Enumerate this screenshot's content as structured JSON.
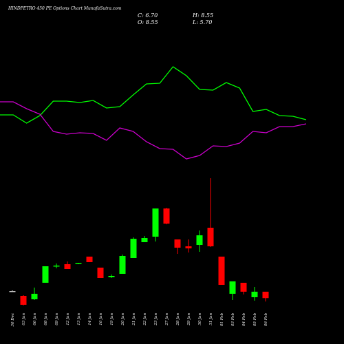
{
  "chart_data": {
    "type": "candlestick",
    "title": "HINDPETRO 450 PE Options Chart MunafaSutra.com",
    "summary": [
      "C: 6.70",
      "H: 8.55",
      "O: 8.55",
      "L: 5.70"
    ],
    "categories": [
      "30 Dec",
      "03 Jan",
      "06 Jan",
      "08 Jan",
      "09 Jan",
      "12 Jan",
      "13 Jan",
      "14 Jan",
      "16 Jan",
      "19 Jan",
      "20 Jan",
      "21 Jan",
      "22 Jan",
      "23 Jan",
      "27 Jan",
      "28 Jan",
      "29 Jan",
      "30 Jan",
      "31 Jan",
      "01 Feb",
      "03 Feb",
      "04 Feb",
      "05 Feb",
      "06 Feb"
    ],
    "open": [
      8.75,
      7.35,
      6.35,
      11.15,
      15.95,
      16.55,
      16.75,
      18.75,
      15.55,
      12.75,
      13.75,
      18.35,
      22.95,
      24.55,
      32.75,
      23.75,
      21.75,
      22.15,
      27.15,
      18.75,
      7.95,
      11.15,
      6.95,
      8.55
    ],
    "high": [
      8.95,
      7.55,
      9.75,
      15.95,
      16.75,
      17.35,
      16.95,
      18.75,
      15.55,
      13.55,
      19.35,
      24.35,
      24.75,
      32.75,
      32.95,
      23.75,
      23.75,
      26.35,
      41.55,
      18.75,
      11.55,
      11.15,
      9.95,
      8.55
    ],
    "low": [
      8.55,
      4.55,
      6.15,
      11.15,
      15.35,
      15.15,
      16.55,
      17.15,
      12.55,
      12.55,
      13.75,
      18.35,
      22.95,
      23.15,
      28.15,
      19.55,
      19.95,
      20.15,
      21.55,
      10.55,
      6.15,
      7.75,
      5.95,
      5.7
    ],
    "close": [
      8.75,
      4.75,
      7.95,
      15.95,
      16.15,
      15.15,
      16.95,
      17.15,
      12.55,
      13.15,
      18.95,
      23.95,
      24.15,
      32.75,
      28.35,
      21.35,
      21.15,
      24.95,
      21.75,
      10.55,
      11.55,
      8.55,
      8.55,
      6.7
    ],
    "up_color": "#00ff00",
    "down_color": "#ff0000",
    "flat_color": "#cccccc",
    "series": [
      {
        "color": "#00ff00",
        "values": [
          59.95,
          59.95,
          57.55,
          59.75,
          63.95,
          63.95,
          63.55,
          64.15,
          61.95,
          62.35,
          65.75,
          68.95,
          69.15,
          73.95,
          71.35,
          67.35,
          67.15,
          69.35,
          67.75,
          60.95,
          61.55,
          59.75,
          59.55,
          58.55
        ]
      },
      {
        "color": "#cc00cc",
        "values": [
          63.75,
          63.75,
          61.75,
          60.15,
          55.15,
          54.35,
          54.75,
          54.55,
          52.55,
          56.15,
          55.15,
          52.15,
          50.15,
          49.95,
          47.15,
          48.15,
          50.95,
          50.75,
          51.75,
          55.15,
          54.75,
          56.55,
          56.55,
          57.35
        ]
      }
    ],
    "ylim": [
      -6.65,
      93.35
    ]
  }
}
